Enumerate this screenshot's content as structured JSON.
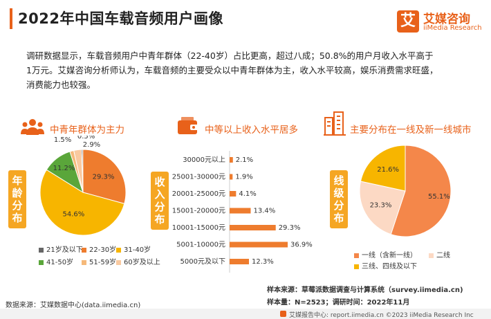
{
  "header": {
    "title": "2022年中国车载音频用户画像",
    "logo_mark": "艾",
    "logo_cn": "艾媒咨询",
    "logo_en": "iiMedia Research"
  },
  "intro": {
    "line1": "调研数据显示，车载音频用户中青年群体（22-40岁）占比更高，超过八成；50.8%的用户月收入水平高于",
    "line2": "1万元。艾媒咨询分析师认为，车载音频的主要受众以中青年群体为主，收入水平较高，娱乐消费需求旺盛，",
    "line3": "消费能力也较强。"
  },
  "panels": {
    "age": {
      "title": "中青年群体为主力",
      "side": [
        "年",
        "龄",
        "分",
        "布"
      ],
      "icon": "people-group-icon"
    },
    "income": {
      "title": "中等以上收入水平居多",
      "side": [
        "收",
        "入",
        "分",
        "布"
      ],
      "icon": "wallet-icon"
    },
    "city": {
      "title": "主要分布在一线及新一线城市",
      "side": [
        "线",
        "级",
        "分",
        "布"
      ],
      "icon": "buildings-icon"
    }
  },
  "chart_data": [
    {
      "type": "pie",
      "title": "中青年群体为主力",
      "labels": [
        "21岁及以下",
        "22-30岁",
        "31-40岁",
        "41-50岁",
        "51-59岁",
        "60岁及以上"
      ],
      "values": [
        0.5,
        29.3,
        54.6,
        11.2,
        1.5,
        2.9
      ],
      "value_labels": [
        "0.5%",
        "29.3%",
        "54.6%",
        "11.2%",
        "1.5%",
        "2.9%"
      ],
      "colors": [
        "#666666",
        "#ee7c2e",
        "#f7b500",
        "#5aa63a",
        "#f5b97a",
        "#f9c9a0"
      ],
      "legend_position": "bottom"
    },
    {
      "type": "bar",
      "orientation": "horizontal",
      "title": "中等以上收入水平居多",
      "categories": [
        "30000元以上",
        "25001-30000元",
        "20001-25000元",
        "15001-20000元",
        "10001-15000元",
        "5001-10000元",
        "5000元及以下"
      ],
      "values": [
        2.1,
        1.9,
        4.1,
        13.4,
        29.3,
        36.9,
        12.3
      ],
      "value_labels": [
        "2.1%",
        "1.9%",
        "4.1%",
        "13.4%",
        "29.3%",
        "36.9%",
        "12.3%"
      ],
      "color": "#ee7c2e",
      "xlim": [
        0,
        40
      ]
    },
    {
      "type": "pie",
      "title": "主要分布在一线及新一线城市",
      "labels": [
        "一线（含新一线）",
        "二线",
        "三线、四线及以下"
      ],
      "values": [
        55.1,
        23.3,
        21.6
      ],
      "value_labels": [
        "55.1%",
        "23.3%",
        "21.6%"
      ],
      "colors": [
        "#f4874a",
        "#fcd9c4",
        "#f7b500"
      ],
      "legend_position": "bottom"
    }
  ],
  "footer": {
    "source": "数据来源：艾媒数据中心(data.iimedia.cn)",
    "sample_source": "样本来源：草莓派数据调查与计算系统（survey.iimedia.cn)",
    "sample_size": "样本量：N=2523；调研时间：2022年11月",
    "bottom": "艾媒报告中心: report.iimedia.cn    ©2023  iiMedia Research  Inc"
  }
}
